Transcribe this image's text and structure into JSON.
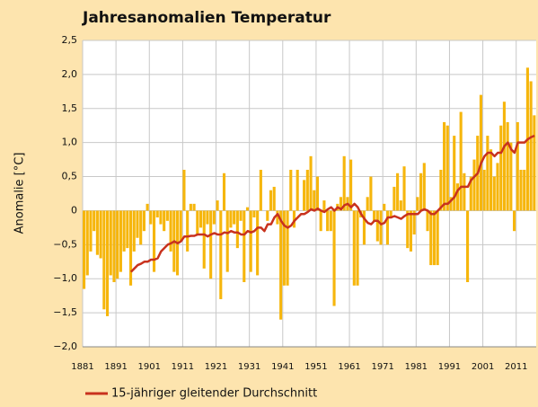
{
  "chart_data": {
    "type": "bar",
    "title": "Jahresanomalien Temperatur",
    "y_label": "Anomalie [°C]",
    "x": [
      1881,
      1882,
      1883,
      1884,
      1885,
      1886,
      1887,
      1888,
      1889,
      1890,
      1891,
      1892,
      1893,
      1894,
      1895,
      1896,
      1897,
      1898,
      1899,
      1900,
      1901,
      1902,
      1903,
      1904,
      1905,
      1906,
      1907,
      1908,
      1909,
      1910,
      1911,
      1912,
      1913,
      1914,
      1915,
      1916,
      1917,
      1918,
      1919,
      1920,
      1921,
      1922,
      1923,
      1924,
      1925,
      1926,
      1927,
      1928,
      1929,
      1930,
      1931,
      1932,
      1933,
      1934,
      1935,
      1936,
      1937,
      1938,
      1939,
      1940,
      1941,
      1942,
      1943,
      1944,
      1945,
      1946,
      1947,
      1948,
      1949,
      1950,
      1951,
      1952,
      1953,
      1954,
      1955,
      1956,
      1957,
      1958,
      1959,
      1960,
      1961,
      1962,
      1963,
      1964,
      1965,
      1966,
      1967,
      1968,
      1969,
      1970,
      1971,
      1972,
      1973,
      1974,
      1975,
      1976,
      1977,
      1978,
      1979,
      1980,
      1981,
      1982,
      1983,
      1984,
      1985,
      1986,
      1987,
      1988,
      1989,
      1990,
      1991,
      1992,
      1993,
      1994,
      1995,
      1996,
      1997,
      1998,
      1999,
      2000,
      2001,
      2002,
      2003,
      2004,
      2005,
      2006,
      2007,
      2008,
      2009,
      2010,
      2011,
      2012,
      2013,
      2014,
      2015,
      2016
    ],
    "series": [
      {
        "color": "#f6b60c",
        "values": [
          -1.15,
          -0.95,
          -0.6,
          -0.3,
          -0.65,
          -0.7,
          -1.45,
          -1.55,
          -0.95,
          -1.05,
          -1.0,
          -0.9,
          -0.6,
          -0.55,
          -1.1,
          -0.6,
          -0.4,
          -0.5,
          -0.3,
          0.1,
          -0.2,
          -0.9,
          -0.1,
          -0.2,
          -0.3,
          -0.15,
          -0.6,
          -0.9,
          -0.95,
          -0.45,
          0.6,
          -0.6,
          0.1,
          0.1,
          -0.35,
          -0.25,
          -0.85,
          -0.2,
          -1.0,
          -0.2,
          0.15,
          -1.3,
          0.55,
          -0.9,
          -0.25,
          -0.2,
          -0.55,
          -0.15,
          -1.05,
          0.05,
          -0.9,
          -0.1,
          -0.95,
          0.6,
          0.0,
          -0.15,
          0.3,
          0.35,
          -0.2,
          -1.6,
          -1.1,
          -1.1,
          0.6,
          -0.25,
          0.6,
          0.0,
          0.45,
          0.6,
          0.8,
          0.3,
          0.5,
          -0.3,
          0.15,
          -0.3,
          -0.3,
          -1.4,
          0.1,
          0.2,
          0.8,
          0.2,
          0.75,
          -1.1,
          -1.1,
          -0.1,
          -0.5,
          0.2,
          0.5,
          -0.15,
          -0.45,
          -0.5,
          0.1,
          -0.5,
          -0.1,
          0.35,
          0.55,
          0.15,
          0.65,
          -0.55,
          -0.6,
          -0.35,
          0.2,
          0.55,
          0.7,
          -0.3,
          -0.8,
          -0.8,
          -0.8,
          0.6,
          1.3,
          1.25,
          0.2,
          1.1,
          0.4,
          1.45,
          0.55,
          -1.05,
          0.5,
          0.75,
          1.1,
          1.7,
          0.6,
          1.1,
          0.9,
          0.5,
          0.7,
          1.25,
          1.6,
          1.3,
          1.0,
          -0.3,
          1.3,
          0.6,
          0.6,
          2.1,
          1.9,
          1.4
        ]
      },
      {
        "name": "15-jähriger gleitender Durchschnitt",
        "type": "line",
        "color": "#c8321e",
        "values": [
          null,
          null,
          null,
          null,
          null,
          null,
          null,
          null,
          null,
          null,
          null,
          null,
          null,
          null,
          -0.9,
          -0.85,
          -0.8,
          -0.78,
          -0.75,
          -0.75,
          -0.72,
          -0.72,
          -0.7,
          -0.6,
          -0.55,
          -0.5,
          -0.48,
          -0.45,
          -0.48,
          -0.45,
          -0.38,
          -0.38,
          -0.37,
          -0.37,
          -0.35,
          -0.35,
          -0.35,
          -0.38,
          -0.35,
          -0.33,
          -0.35,
          -0.35,
          -0.32,
          -0.33,
          -0.3,
          -0.32,
          -0.32,
          -0.35,
          -0.35,
          -0.3,
          -0.32,
          -0.3,
          -0.25,
          -0.25,
          -0.3,
          -0.2,
          -0.2,
          -0.1,
          -0.05,
          -0.15,
          -0.22,
          -0.25,
          -0.22,
          -0.15,
          -0.1,
          -0.05,
          -0.05,
          -0.02,
          0.02,
          0.0,
          0.03,
          0.0,
          -0.02,
          0.02,
          0.05,
          0.0,
          0.05,
          0.02,
          0.08,
          0.1,
          0.05,
          0.1,
          0.05,
          -0.05,
          -0.12,
          -0.18,
          -0.2,
          -0.15,
          -0.15,
          -0.2,
          -0.18,
          -0.1,
          -0.1,
          -0.08,
          -0.1,
          -0.12,
          -0.08,
          -0.05,
          -0.05,
          -0.05,
          -0.05,
          0.0,
          0.02,
          0.0,
          -0.05,
          -0.05,
          0.0,
          0.05,
          0.1,
          0.1,
          0.15,
          0.2,
          0.3,
          0.35,
          0.35,
          0.35,
          0.45,
          0.5,
          0.55,
          0.7,
          0.8,
          0.85,
          0.85,
          0.8,
          0.85,
          0.85,
          0.95,
          1.0,
          0.9,
          0.85,
          1.0,
          1.0,
          1.0,
          1.05,
          1.08,
          1.1
        ]
      }
    ],
    "xlim": [
      1881,
      2017
    ],
    "xticks": [
      1881,
      1891,
      1901,
      1911,
      1921,
      1931,
      1941,
      1951,
      1961,
      1971,
      1981,
      1991,
      2001,
      2011
    ],
    "ylim": [
      -2.0,
      2.5
    ],
    "yticks": [
      {
        "value": -2.0,
        "label": "−2,0"
      },
      {
        "value": -1.5,
        "label": "−1,5"
      },
      {
        "value": -1.0,
        "label": "−1,0"
      },
      {
        "value": -0.5,
        "label": "−0,5"
      },
      0,
      {
        "value": 0.5,
        "label": "0,5"
      },
      {
        "value": 1.0,
        "label": "1,0"
      },
      {
        "value": 1.5,
        "label": "1,5"
      },
      {
        "value": 2.0,
        "label": "2,0"
      },
      {
        "value": 2.5,
        "label": "2,5"
      }
    ],
    "grid": true
  }
}
